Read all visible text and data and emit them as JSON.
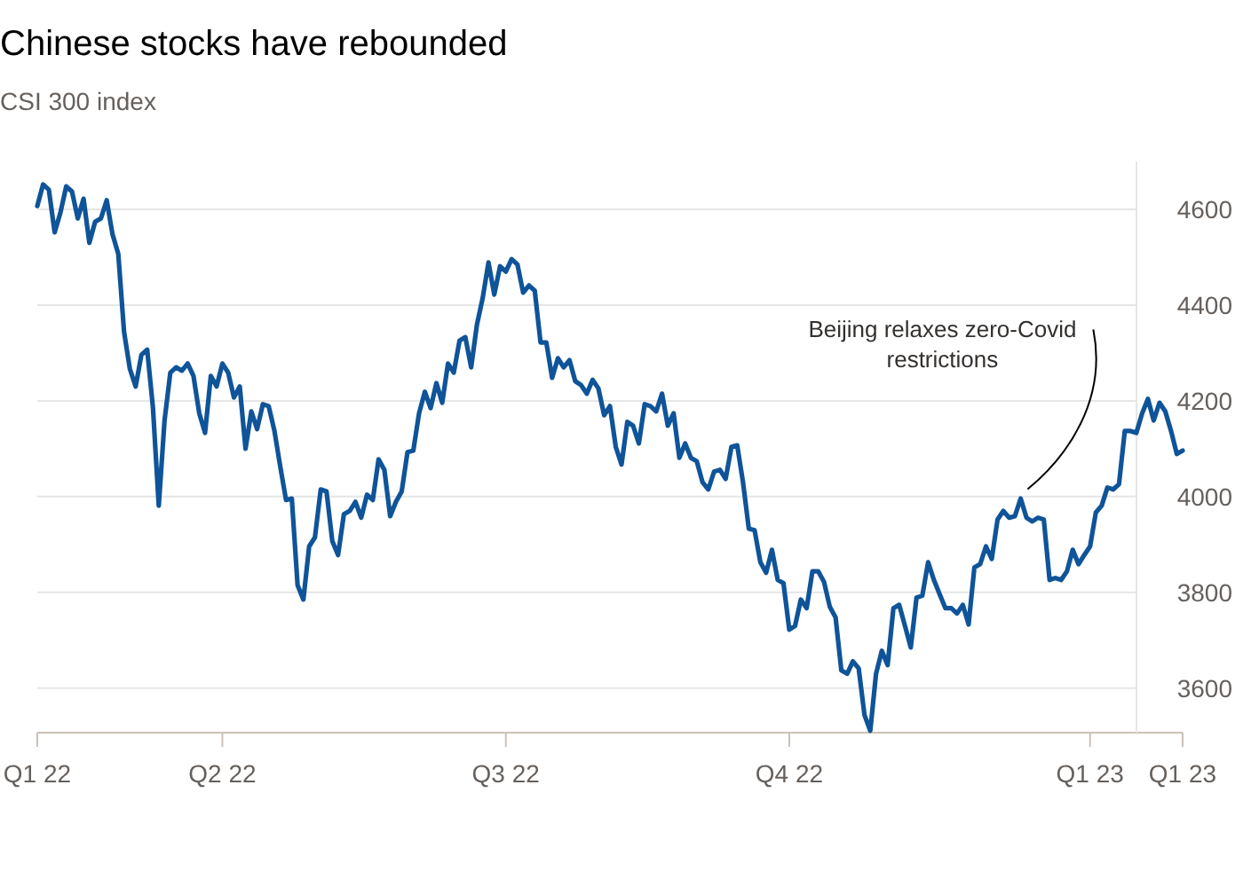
{
  "chart_data": {
    "type": "line",
    "title": "Chinese stocks have rebounded",
    "subtitle": "CSI 300 index",
    "categories": [
      "Q1 22",
      null,
      null,
      null,
      null,
      null,
      null,
      null,
      null,
      null,
      null,
      null,
      null,
      null,
      null,
      null,
      null,
      null,
      null,
      null,
      null,
      null,
      null,
      null,
      null,
      null,
      null,
      null,
      null,
      null,
      null,
      null,
      "Q2 22",
      null,
      null,
      null,
      null,
      null,
      null,
      null,
      null,
      null,
      null,
      null,
      null,
      null,
      null,
      null,
      null,
      null,
      null,
      null,
      null,
      null,
      null,
      null,
      null,
      null,
      null,
      null,
      null,
      null,
      null,
      null,
      null,
      null,
      null,
      null,
      null,
      null,
      null,
      null,
      null,
      null,
      null,
      null,
      null,
      null,
      null,
      null,
      null,
      "Q3 22",
      null,
      null,
      null,
      null,
      null,
      null,
      null,
      null,
      null,
      null,
      null,
      null,
      null,
      null,
      null,
      null,
      null,
      null,
      null,
      null,
      null,
      null,
      null,
      null,
      null,
      null,
      null,
      null,
      null,
      null,
      null,
      null,
      null,
      null,
      null,
      null,
      null,
      null,
      null,
      null,
      null,
      null,
      null,
      null,
      null,
      null,
      null,
      null,
      "Q4 22",
      null,
      null,
      null,
      null,
      null,
      null,
      null,
      null,
      null,
      null,
      null,
      null,
      null,
      null,
      null,
      null,
      null,
      null,
      null,
      null,
      null,
      null,
      null,
      null,
      null,
      null,
      null,
      null,
      null,
      null,
      null,
      null,
      null,
      null,
      null,
      null,
      null,
      null,
      null,
      null,
      null,
      null,
      null,
      null,
      null,
      null,
      null,
      null,
      null,
      null,
      null,
      "Q1 23",
      null,
      null,
      null,
      null,
      null,
      null,
      null,
      null,
      null,
      null,
      null,
      null,
      null,
      null,
      null,
      "Q1 23"
    ],
    "series": [
      {
        "color": "#0f5499",
        "values": [
          4607,
          4652,
          4641,
          4552,
          4593,
          4648,
          4637,
          4581,
          4622,
          4530,
          4574,
          4581,
          4619,
          4548,
          4507,
          4344,
          4267,
          4230,
          4296,
          4307,
          4185,
          3981,
          4159,
          4259,
          4270,
          4263,
          4278,
          4252,
          4174,
          4133,
          4252,
          4230,
          4278,
          4259,
          4207,
          4230,
          4100,
          4178,
          4141,
          4193,
          4189,
          4137,
          4063,
          3993,
          3996,
          3815,
          3785,
          3896,
          3915,
          4015,
          4011,
          3907,
          3878,
          3963,
          3970,
          3989,
          3956,
          4004,
          3993,
          4078,
          4056,
          3959,
          3989,
          4011,
          4093,
          4096,
          4174,
          4219,
          4185,
          4237,
          4196,
          4278,
          4259,
          4326,
          4333,
          4270,
          4359,
          4415,
          4489,
          4422,
          4481,
          4470,
          4496,
          4485,
          4426,
          4441,
          4430,
          4322,
          4322,
          4248,
          4289,
          4270,
          4285,
          4241,
          4233,
          4215,
          4244,
          4226,
          4170,
          4189,
          4104,
          4067,
          4156,
          4148,
          4111,
          4193,
          4189,
          4178,
          4215,
          4148,
          4174,
          4081,
          4111,
          4081,
          4074,
          4030,
          4015,
          4052,
          4056,
          4037,
          4104,
          4107,
          4030,
          3933,
          3930,
          3863,
          3841,
          3889,
          3826,
          3819,
          3722,
          3730,
          3785,
          3767,
          3844,
          3844,
          3822,
          3770,
          3748,
          3637,
          3630,
          3656,
          3641,
          3544,
          3511,
          3630,
          3678,
          3648,
          3767,
          3774,
          3730,
          3685,
          3789,
          3793,
          3863,
          3826,
          3796,
          3767,
          3767,
          3756,
          3774,
          3733,
          3852,
          3859,
          3896,
          3870,
          3952,
          3970,
          3956,
          3959,
          3996,
          3956,
          3948,
          3956,
          3952,
          3826,
          3830,
          3826,
          3844,
          3889,
          3859,
          3878,
          3896,
          3967,
          3981,
          4019,
          4015,
          4026,
          4137,
          4137,
          4133,
          4174,
          4204,
          4159,
          4196,
          4178,
          4137,
          4089,
          4096
        ]
      }
    ],
    "ylim": [
      3507,
      4700
    ],
    "yticks": [
      3600,
      3800,
      4000,
      4200,
      4400,
      4600
    ],
    "grid": "y",
    "marker": "none",
    "line_style": "solid",
    "annotations": [
      "Beijing relaxes zero-Covid restrictions"
    ]
  }
}
